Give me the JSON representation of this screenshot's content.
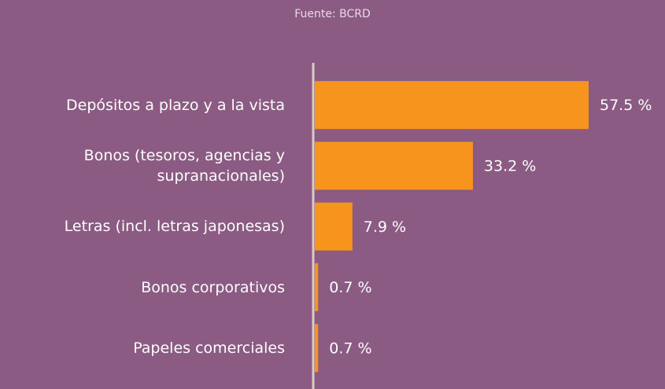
{
  "chart_data": {
    "type": "bar",
    "orientation": "horizontal",
    "subtitle": "Fuente: BCRD",
    "categories": [
      "Depósitos a plazo y a la vista",
      "Bonos (tesoros, agencias y supranacionales)",
      "Letras (incl. letras japonesas)",
      "Bonos corporativos",
      "Papeles comerciales"
    ],
    "values": [
      57.5,
      33.2,
      7.9,
      0.7,
      0.7
    ],
    "value_labels": [
      "57.5 %",
      "33.2 %",
      "7.9 %",
      "0.7 %",
      "0.7 %"
    ],
    "color": "#f7941d"
  }
}
